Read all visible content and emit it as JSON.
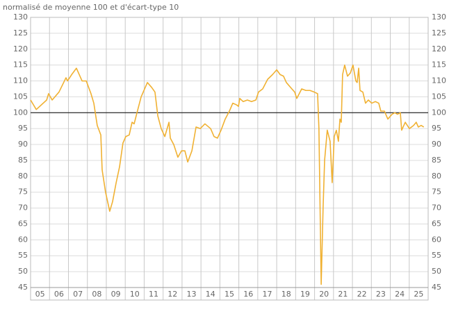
{
  "chart_data": {
    "type": "line",
    "subtitle": "normalisé de moyenne 100 et d'écart-type 10",
    "x": [
      5.0,
      5.3,
      5.85,
      5.95,
      6.14,
      6.5,
      6.87,
      6.95,
      7.17,
      7.42,
      7.72,
      7.94,
      8.19,
      8.34,
      8.52,
      8.71,
      8.78,
      8.96,
      9.18,
      9.33,
      9.52,
      9.7,
      9.88,
      10.03,
      10.21,
      10.36,
      10.47,
      10.62,
      10.84,
      11.17,
      11.39,
      11.57,
      11.72,
      11.9,
      12.09,
      12.31,
      12.38,
      12.56,
      12.78,
      12.97,
      13.15,
      13.3,
      13.52,
      13.74,
      13.96,
      14.21,
      14.51,
      14.69,
      14.87,
      15.06,
      15.28,
      15.5,
      15.68,
      15.87,
      15.98,
      16.05,
      16.23,
      16.45,
      16.67,
      16.9,
      17.04,
      17.26,
      17.52,
      17.78,
      18.0,
      18.18,
      18.36,
      18.51,
      18.8,
      18.95,
      19.06,
      19.32,
      19.54,
      19.76,
      19.98,
      20.16,
      20.23,
      20.35,
      20.45,
      20.53,
      20.67,
      20.82,
      20.93,
      21.04,
      21.15,
      21.26,
      21.34,
      21.41,
      21.48,
      21.59,
      21.74,
      21.89,
      22.03,
      22.18,
      22.25,
      22.33,
      22.4,
      22.55,
      22.69,
      22.84,
      23.02,
      23.21,
      23.39,
      23.5,
      23.69,
      23.87,
      24.09,
      24.24,
      24.38,
      24.53,
      24.6,
      24.79,
      25.01,
      25.23,
      25.37,
      25.48,
      25.63,
      25.77
    ],
    "series": [
      {
        "color": "#f0b132",
        "values": [
          104,
          101,
          104,
          106,
          104,
          106.5,
          111,
          110,
          112,
          114,
          110,
          110,
          106,
          103,
          96,
          93,
          82,
          75,
          69,
          72,
          78,
          83,
          90.5,
          92.5,
          93,
          97,
          96.5,
          100,
          105,
          109.5,
          108,
          106.5,
          99,
          95,
          92.5,
          97,
          92,
          90,
          86,
          88,
          88,
          84.5,
          88,
          95.5,
          95,
          96.5,
          95,
          92.5,
          92,
          94.5,
          98,
          100.5,
          103,
          102.5,
          102,
          104.5,
          103.5,
          104,
          103.5,
          104,
          106.5,
          107.5,
          110.5,
          112,
          113.5,
          112,
          111.5,
          109.5,
          107.5,
          106.5,
          104.5,
          107.5,
          107,
          107,
          106.5,
          106,
          95,
          46,
          70,
          85,
          94.5,
          91,
          78,
          92.5,
          94.5,
          91,
          98,
          97,
          112,
          115,
          111.5,
          112.5,
          115,
          110,
          109.5,
          114,
          107,
          106.5,
          103,
          104,
          103,
          103.5,
          103,
          100.5,
          100.5,
          98,
          99.5,
          100,
          99.5,
          100,
          94.5,
          97,
          95,
          96,
          97,
          95.5,
          96,
          95.5
        ]
      }
    ],
    "xlim": [
      5,
      26
    ],
    "xticks": [
      {
        "value": 5,
        "label": "05"
      },
      {
        "value": 6,
        "label": "06"
      },
      {
        "value": 7,
        "label": "07"
      },
      {
        "value": 8,
        "label": "08"
      },
      {
        "value": 9,
        "label": "09"
      },
      {
        "value": 10,
        "label": "10"
      },
      {
        "value": 11,
        "label": "11"
      },
      {
        "value": 12,
        "label": "12"
      },
      {
        "value": 13,
        "label": "13"
      },
      {
        "value": 14,
        "label": "14"
      },
      {
        "value": 15,
        "label": "15"
      },
      {
        "value": 16,
        "label": "16"
      },
      {
        "value": 17,
        "label": "17"
      },
      {
        "value": 18,
        "label": "18"
      },
      {
        "value": 19,
        "label": "19"
      },
      {
        "value": 20,
        "label": "20"
      },
      {
        "value": 21,
        "label": "21"
      },
      {
        "value": 22,
        "label": "22"
      },
      {
        "value": 23,
        "label": "23"
      },
      {
        "value": 24,
        "label": "24"
      },
      {
        "value": 25,
        "label": "25"
      }
    ],
    "ylim": [
      45,
      130
    ],
    "yticks": [
      45,
      50,
      55,
      60,
      65,
      70,
      75,
      80,
      85,
      90,
      95,
      100,
      105,
      110,
      115,
      120,
      125,
      130
    ],
    "y2lim": [
      45,
      130
    ],
    "y2ticks": [
      45,
      50,
      55,
      60,
      65,
      70,
      75,
      80,
      85,
      90,
      95,
      100,
      105,
      110,
      115,
      120,
      125,
      130
    ],
    "reference_line": 100,
    "grid": true
  }
}
